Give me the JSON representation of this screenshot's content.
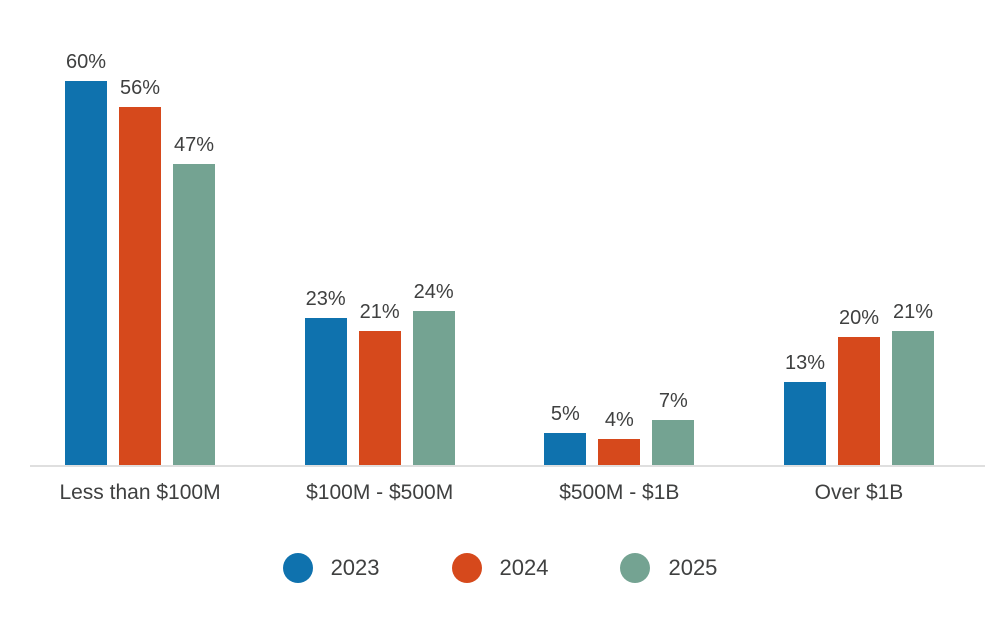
{
  "chart_data": {
    "type": "bar",
    "title": "",
    "xlabel": "",
    "ylabel": "",
    "categories": [
      "Less than $100M",
      "$100M - $500M",
      "$500M - $1B",
      "Over $1B"
    ],
    "series": [
      {
        "name": "2023",
        "color": "#0f72ae",
        "values": [
          60,
          23,
          5,
          13
        ]
      },
      {
        "name": "2024",
        "color": "#d6491c",
        "values": [
          56,
          21,
          4,
          20
        ]
      },
      {
        "name": "2025",
        "color": "#74a392",
        "values": [
          47,
          24,
          7,
          21
        ]
      }
    ],
    "value_suffix": "%",
    "data_labels": true,
    "ylim": [
      0,
      65
    ],
    "grid": false,
    "legend_position": "bottom"
  },
  "colors": {
    "text": "#3f4040",
    "axis_line": "#dfdfdf",
    "background": "#ffffff"
  }
}
